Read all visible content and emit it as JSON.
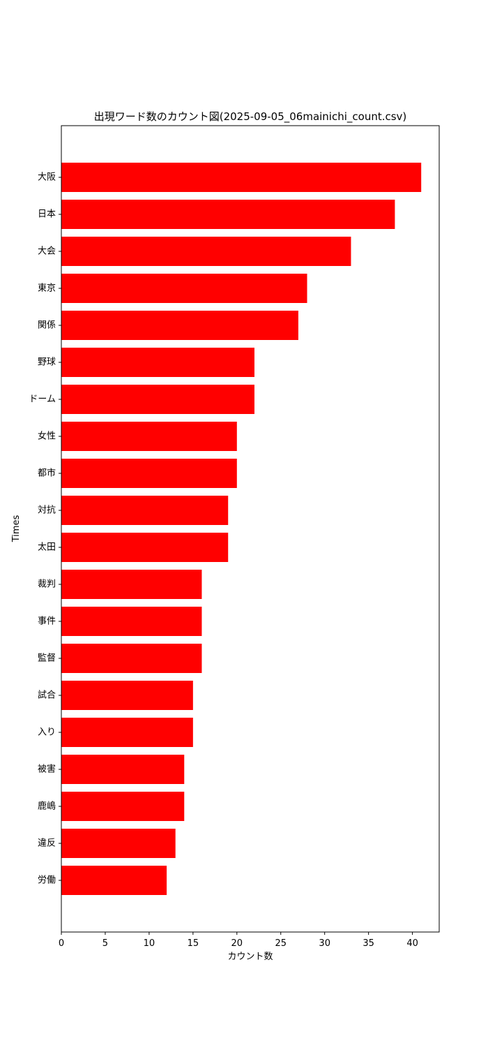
{
  "chart_data": {
    "type": "bar",
    "orientation": "horizontal",
    "title": "出現ワード数のカウント図(2025-09-05_06mainichi_count.csv)",
    "xlabel": "カウント数",
    "ylabel": "Times",
    "xlim": [
      0,
      43.05
    ],
    "xticks": [
      0,
      5,
      10,
      15,
      20,
      25,
      30,
      35,
      40
    ],
    "grid": false,
    "bar_color": "#ff0000",
    "categories": [
      "大阪",
      "日本",
      "大会",
      "東京",
      "関係",
      "野球",
      "ドーム",
      "女性",
      "都市",
      "対抗",
      "太田",
      "裁判",
      "事件",
      "監督",
      "試合",
      "入り",
      "被害",
      "鹿嶋",
      "違反",
      "労働"
    ],
    "values": [
      41,
      38,
      33,
      28,
      27,
      22,
      22,
      20,
      20,
      19,
      19,
      16,
      16,
      16,
      15,
      15,
      14,
      14,
      13,
      12
    ]
  }
}
